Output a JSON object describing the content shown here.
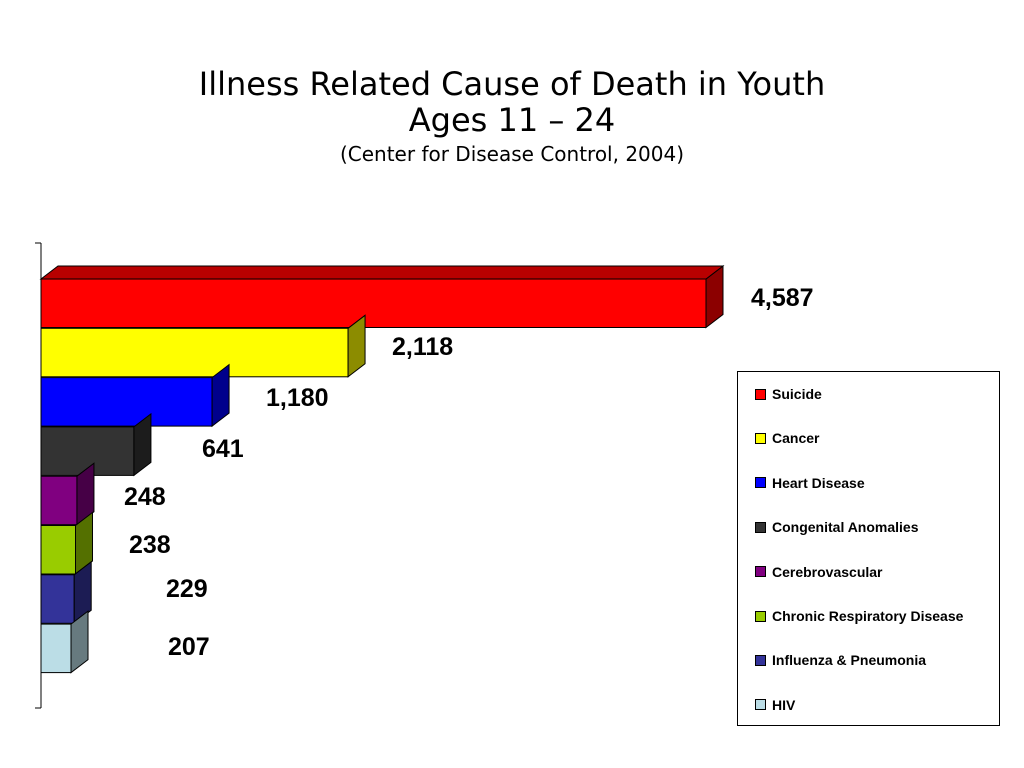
{
  "title": {
    "line1": "Illness Related Cause of Death in Youth",
    "line2": "Ages  11 – 24",
    "source": "(Center for Disease Control, 2004)"
  },
  "chart_data": {
    "type": "bar",
    "orientation": "horizontal",
    "three_d": true,
    "categories": [
      "Suicide",
      "Cancer",
      "Heart Disease",
      "Congenital Anomalies",
      "Cerebrovascular",
      "Chronic Respiratory Disease",
      "Influenza & Pneumonia",
      "HIV"
    ],
    "values": [
      4587,
      2118,
      1180,
      641,
      248,
      238,
      229,
      207
    ],
    "value_labels": [
      "4,587",
      "2,118",
      "1,180",
      "641",
      "248",
      "238",
      "229",
      "207"
    ],
    "colors": [
      "#ff0000",
      "#ffff00",
      "#0000ff",
      "#333333",
      "#800080",
      "#99cc00",
      "#333399",
      "#bbdde6"
    ],
    "legend": "right",
    "grid": false,
    "xlabel": "",
    "ylabel": ""
  }
}
